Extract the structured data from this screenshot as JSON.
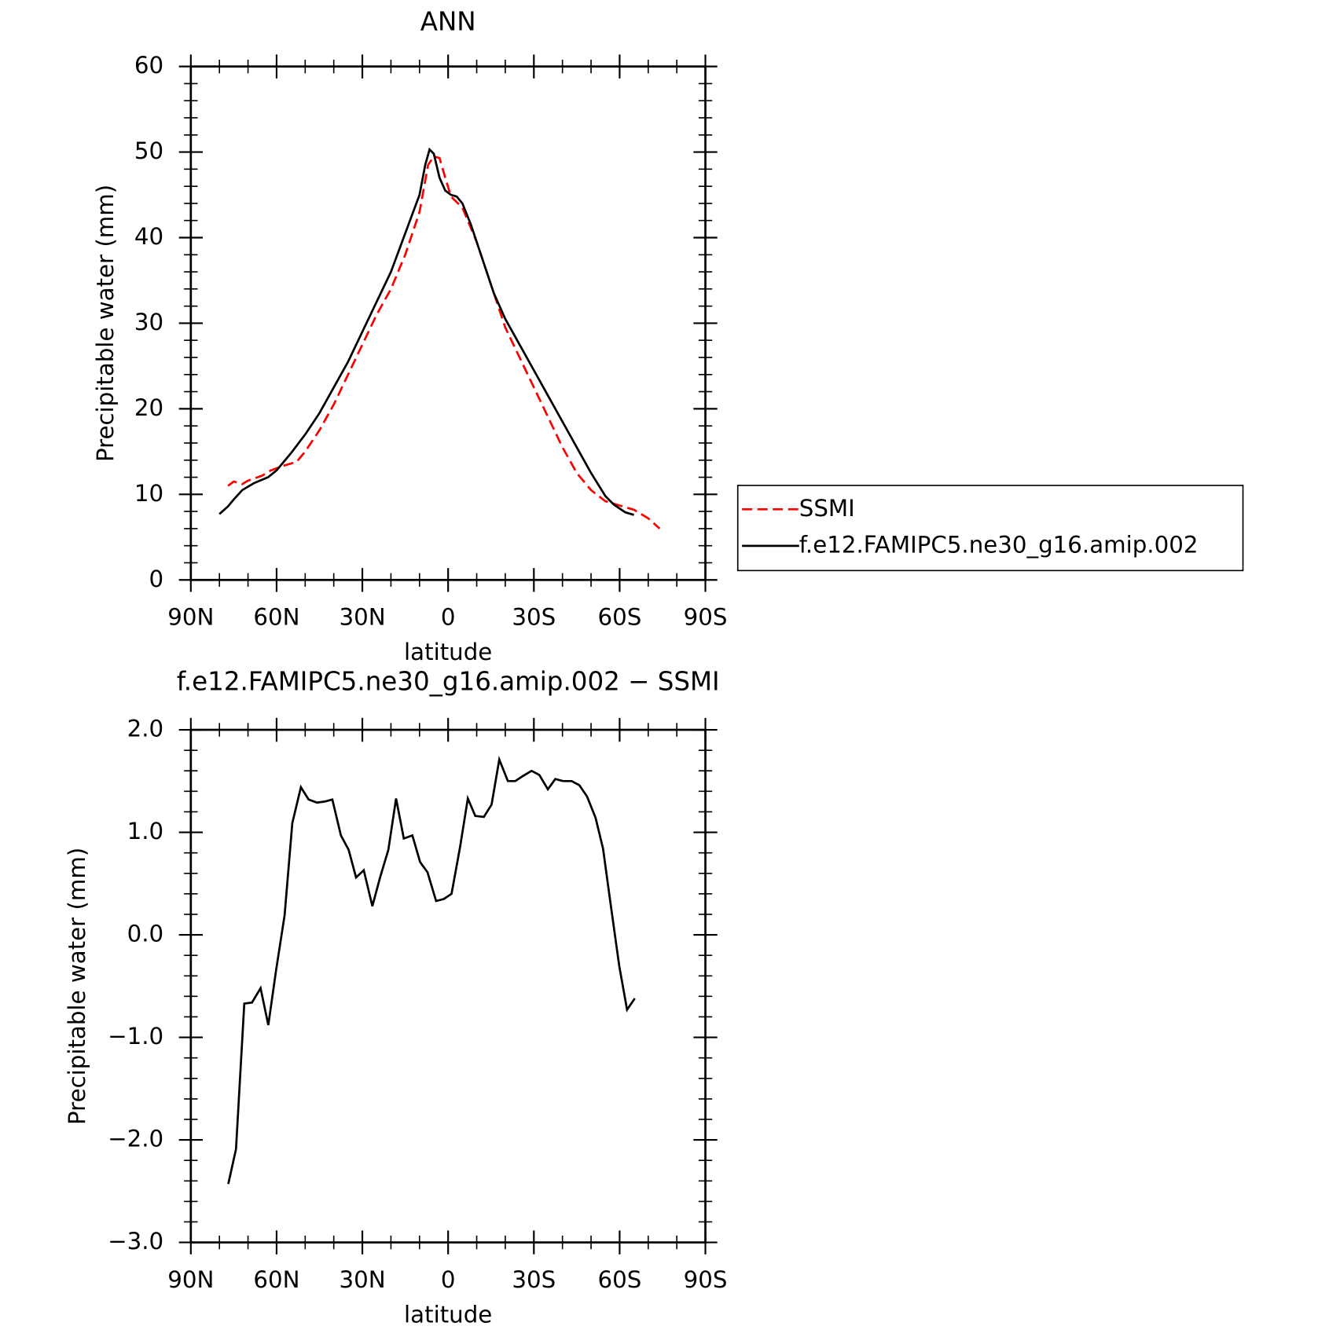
{
  "chart_data": [
    {
      "type": "line",
      "title": "ANN",
      "xlabel": "latitude",
      "ylabel": "Precipitable water (mm)",
      "xlim": [
        90,
        -90
      ],
      "xticks": [
        {
          "value": 90,
          "label": "90N"
        },
        {
          "value": 60,
          "label": "60N"
        },
        {
          "value": 30,
          "label": "30N"
        },
        0,
        {
          "value": -30,
          "label": "30S"
        },
        {
          "value": -60,
          "label": "60S"
        },
        {
          "value": -90,
          "label": "90S"
        }
      ],
      "ylim": [
        0,
        60
      ],
      "yticks": [
        0,
        10,
        20,
        30,
        40,
        50,
        60
      ],
      "legend": "right",
      "series": [
        {
          "name": "SSMI",
          "color": "#ff0000",
          "dash": true,
          "x": [
            77,
            75,
            72,
            70,
            65,
            62,
            58,
            53,
            50,
            45,
            40,
            35,
            30,
            25,
            20,
            15,
            10,
            7,
            5,
            3,
            1,
            -1,
            -5,
            -10,
            -15,
            -20,
            -25,
            -30,
            -35,
            -40,
            -45,
            -50,
            -55,
            -60,
            -65,
            -70,
            -74
          ],
          "values": [
            11.0,
            11.5,
            11.2,
            11.6,
            12.2,
            12.8,
            13.3,
            13.8,
            15.0,
            17.5,
            20.5,
            24.0,
            27.5,
            31.0,
            34.0,
            38.0,
            43.0,
            48.5,
            49.5,
            49.3,
            47.0,
            44.8,
            43.5,
            39.5,
            34.5,
            29.5,
            26.0,
            22.5,
            19.0,
            15.5,
            12.5,
            10.5,
            9.2,
            8.7,
            8.2,
            7.2,
            6.0
          ]
        },
        {
          "name": "f.e12.FAMIPC5.ne30_g16.amip.002",
          "color": "#000000",
          "dash": false,
          "x": [
            80,
            77,
            75,
            72,
            68,
            63,
            60,
            55,
            50,
            45,
            40,
            35,
            30,
            25,
            20,
            15,
            10,
            8,
            6.5,
            5,
            3,
            1,
            -1,
            -3,
            -5,
            -8,
            -12,
            -16,
            -20,
            -25,
            -30,
            -35,
            -40,
            -45,
            -50,
            -55,
            -58,
            -62,
            -65
          ],
          "values": [
            7.7,
            8.6,
            9.4,
            10.5,
            11.3,
            12.0,
            12.8,
            14.8,
            17.0,
            19.5,
            22.5,
            25.5,
            29.0,
            32.5,
            36.0,
            40.5,
            45.0,
            48.5,
            50.3,
            49.8,
            47.0,
            45.5,
            45.0,
            44.8,
            44.0,
            41.5,
            37.5,
            33.5,
            30.5,
            27.5,
            24.5,
            21.5,
            18.5,
            15.5,
            12.5,
            9.8,
            8.8,
            7.9,
            7.6
          ]
        }
      ]
    },
    {
      "type": "line",
      "title": "f.e12.FAMIPC5.ne30_g16.amip.002 − SSMI",
      "xlabel": "latitude",
      "ylabel": "Precipitable water (mm)",
      "xlim": [
        90,
        -90
      ],
      "xticks": [
        {
          "value": 90,
          "label": "90N"
        },
        {
          "value": 60,
          "label": "60N"
        },
        {
          "value": 30,
          "label": "30N"
        },
        0,
        {
          "value": -30,
          "label": "30S"
        },
        {
          "value": -60,
          "label": "60S"
        },
        {
          "value": -90,
          "label": "90S"
        }
      ],
      "ylim": [
        -3,
        2
      ],
      "yticks": [
        {
          "value": -3,
          "label": "−3.0"
        },
        {
          "value": -2,
          "label": "−2.0"
        },
        {
          "value": -1,
          "label": "−1.0"
        },
        {
          "value": 0,
          "label": "0.0"
        },
        {
          "value": 1,
          "label": "1.0"
        },
        {
          "value": 2,
          "label": "2.0"
        }
      ],
      "series": [
        {
          "color": "#000000",
          "dash": false,
          "x": [
            76.9,
            74.2,
            71.3,
            68.6,
            65.6,
            62.9,
            60.2,
            57.2,
            54.5,
            51.5,
            48.8,
            45.9,
            43.2,
            40.5,
            37.5,
            34.8,
            32.2,
            29.5,
            26.5,
            23.8,
            20.9,
            18.2,
            15.5,
            12.5,
            9.8,
            7.2,
            4.2,
            1.5,
            -1.2,
            -4.2,
            -6.9,
            -9.5,
            -12.5,
            -15.2,
            -17.9,
            -20.9,
            -23.5,
            -26.2,
            -29.2,
            -31.9,
            -34.9,
            -37.5,
            -40.2,
            -43.2,
            -45.9,
            -48.6,
            -51.6,
            -54.2,
            -56.9,
            -59.9,
            -62.6,
            -65.3
          ],
          "values": [
            -2.43,
            -2.09,
            -0.67,
            -0.66,
            -0.52,
            -0.88,
            -0.35,
            0.19,
            1.09,
            1.44,
            1.32,
            1.29,
            1.3,
            1.32,
            0.97,
            0.83,
            0.56,
            0.63,
            0.28,
            0.56,
            0.83,
            1.33,
            0.94,
            0.97,
            0.71,
            0.61,
            0.33,
            0.35,
            0.4,
            0.86,
            1.33,
            1.16,
            1.15,
            1.27,
            1.71,
            1.5,
            1.5,
            1.55,
            1.6,
            1.56,
            1.42,
            1.52,
            1.5,
            1.5,
            1.46,
            1.35,
            1.14,
            0.84,
            0.29,
            -0.31,
            -0.73,
            -0.62
          ]
        }
      ]
    }
  ]
}
